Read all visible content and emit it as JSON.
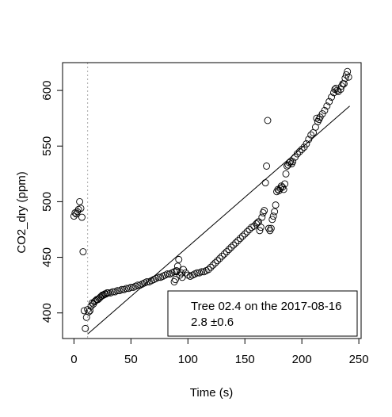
{
  "chart_data": {
    "type": "scatter",
    "xlabel": "Time (s)",
    "ylabel": "CO2_dry (ppm)",
    "xlim": [
      -10,
      252
    ],
    "ylim": [
      377,
      625
    ],
    "x_ticks": [
      0,
      50,
      100,
      150,
      200,
      250
    ],
    "y_ticks": [
      400,
      450,
      500,
      550,
      600
    ],
    "vline_x": 12,
    "fit_line": {
      "x": [
        12,
        242
      ],
      "y": [
        381,
        586
      ]
    },
    "legend": {
      "position": "bottom-right",
      "line1": "Tree 02.4 on the 2017-08-16",
      "line2": "2.8 ±0.6"
    },
    "points": [
      [
        0,
        487
      ],
      [
        1,
        490
      ],
      [
        2,
        489
      ],
      [
        3,
        491
      ],
      [
        4,
        493
      ],
      [
        5,
        500
      ],
      [
        6,
        494
      ],
      [
        7,
        486
      ],
      [
        8,
        455
      ],
      [
        9,
        402
      ],
      [
        10,
        386
      ],
      [
        11,
        396
      ],
      [
        12,
        403
      ],
      [
        13,
        401
      ],
      [
        14,
        402
      ],
      [
        15,
        406
      ],
      [
        16,
        409
      ],
      [
        17,
        408
      ],
      [
        18,
        410
      ],
      [
        19,
        411
      ],
      [
        20,
        412
      ],
      [
        21,
        412
      ],
      [
        22,
        413
      ],
      [
        23,
        414
      ],
      [
        24,
        415
      ],
      [
        25,
        416
      ],
      [
        26,
        416
      ],
      [
        27,
        417
      ],
      [
        28,
        417
      ],
      [
        29,
        418
      ],
      [
        30,
        418
      ],
      [
        32,
        418
      ],
      [
        34,
        419
      ],
      [
        36,
        419
      ],
      [
        38,
        420
      ],
      [
        40,
        420
      ],
      [
        42,
        421
      ],
      [
        44,
        421
      ],
      [
        46,
        422
      ],
      [
        48,
        422
      ],
      [
        50,
        423
      ],
      [
        52,
        423
      ],
      [
        54,
        424
      ],
      [
        56,
        425
      ],
      [
        58,
        425
      ],
      [
        60,
        426
      ],
      [
        62,
        427
      ],
      [
        64,
        428
      ],
      [
        66,
        428
      ],
      [
        68,
        429
      ],
      [
        70,
        430
      ],
      [
        72,
        431
      ],
      [
        74,
        432
      ],
      [
        76,
        432
      ],
      [
        78,
        433
      ],
      [
        80,
        434
      ],
      [
        82,
        435
      ],
      [
        84,
        435
      ],
      [
        86,
        436
      ],
      [
        88,
        437
      ],
      [
        90,
        437
      ],
      [
        88,
        428
      ],
      [
        89,
        430
      ],
      [
        90,
        438
      ],
      [
        91,
        442
      ],
      [
        92,
        448
      ],
      [
        93,
        434
      ],
      [
        94,
        436
      ],
      [
        95,
        432
      ],
      [
        96,
        439
      ],
      [
        98,
        436
      ],
      [
        100,
        434
      ],
      [
        102,
        433
      ],
      [
        104,
        434
      ],
      [
        106,
        435
      ],
      [
        108,
        436
      ],
      [
        110,
        436
      ],
      [
        112,
        437
      ],
      [
        114,
        437
      ],
      [
        116,
        438
      ],
      [
        118,
        439
      ],
      [
        120,
        441
      ],
      [
        122,
        443
      ],
      [
        124,
        445
      ],
      [
        126,
        447
      ],
      [
        128,
        449
      ],
      [
        130,
        451
      ],
      [
        132,
        453
      ],
      [
        134,
        455
      ],
      [
        136,
        457
      ],
      [
        138,
        459
      ],
      [
        140,
        461
      ],
      [
        142,
        463
      ],
      [
        144,
        465
      ],
      [
        146,
        467
      ],
      [
        148,
        469
      ],
      [
        150,
        471
      ],
      [
        152,
        473
      ],
      [
        154,
        475
      ],
      [
        156,
        477
      ],
      [
        158,
        478
      ],
      [
        160,
        480
      ],
      [
        161,
        481
      ],
      [
        162,
        482
      ],
      [
        163,
        474
      ],
      [
        164,
        477
      ],
      [
        165,
        486
      ],
      [
        166,
        490
      ],
      [
        167,
        492
      ],
      [
        168,
        517
      ],
      [
        169,
        532
      ],
      [
        170,
        573
      ],
      [
        171,
        476
      ],
      [
        172,
        474
      ],
      [
        173,
        476
      ],
      [
        174,
        484
      ],
      [
        175,
        487
      ],
      [
        176,
        491
      ],
      [
        177,
        497
      ],
      [
        178,
        509
      ],
      [
        179,
        511
      ],
      [
        180,
        510
      ],
      [
        181,
        512
      ],
      [
        182,
        514
      ],
      [
        183,
        513
      ],
      [
        184,
        511
      ],
      [
        185,
        516
      ],
      [
        186,
        525
      ],
      [
        187,
        532
      ],
      [
        188,
        533
      ],
      [
        189,
        535
      ],
      [
        190,
        536
      ],
      [
        191,
        534
      ],
      [
        192,
        536
      ],
      [
        194,
        540
      ],
      [
        196,
        543
      ],
      [
        198,
        545
      ],
      [
        200,
        547
      ],
      [
        202,
        549
      ],
      [
        204,
        552
      ],
      [
        206,
        556
      ],
      [
        208,
        560
      ],
      [
        210,
        562
      ],
      [
        212,
        567
      ],
      [
        213,
        575
      ],
      [
        214,
        572
      ],
      [
        215,
        574
      ],
      [
        216,
        576
      ],
      [
        218,
        579
      ],
      [
        220,
        582
      ],
      [
        222,
        586
      ],
      [
        224,
        590
      ],
      [
        226,
        594
      ],
      [
        228,
        598
      ],
      [
        229,
        601
      ],
      [
        230,
        602
      ],
      [
        231,
        600
      ],
      [
        232,
        599
      ],
      [
        234,
        601
      ],
      [
        235,
        604
      ],
      [
        236,
        606
      ],
      [
        237,
        606
      ],
      [
        238,
        611
      ],
      [
        239,
        614
      ],
      [
        240,
        617
      ],
      [
        241,
        612
      ]
    ]
  }
}
